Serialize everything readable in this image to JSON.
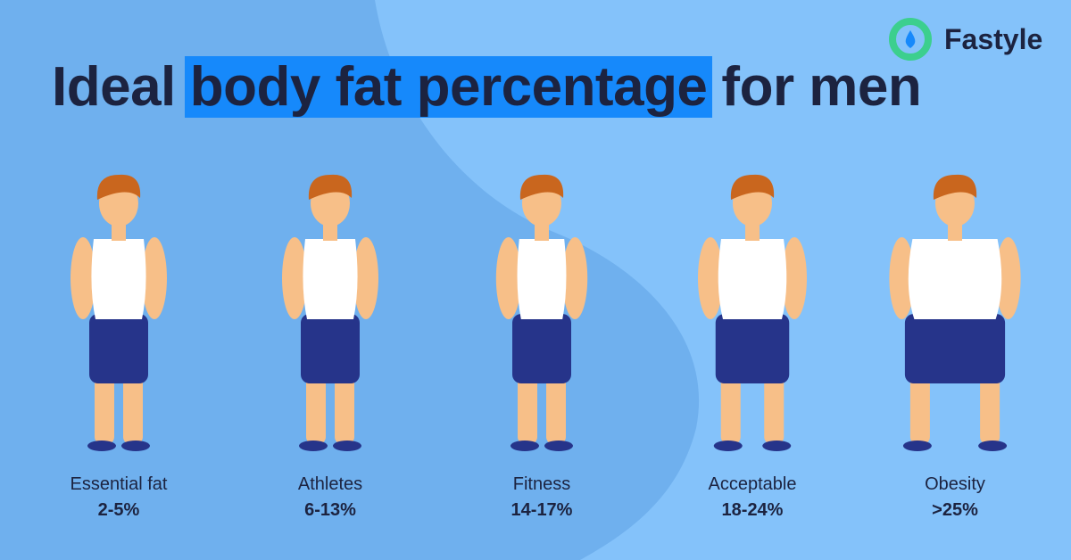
{
  "brand": "Fastyle",
  "title": {
    "before": "Ideal",
    "highlight": "body fat percentage",
    "after": "for men"
  },
  "figures": [
    {
      "label": "Essential fat",
      "range": "2-5%"
    },
    {
      "label": "Athletes",
      "range": "6-13%"
    },
    {
      "label": "Fitness",
      "range": "14-17%"
    },
    {
      "label": "Acceptable",
      "range": "18-24%"
    },
    {
      "label": "Obesity",
      "range": ">25%"
    }
  ]
}
